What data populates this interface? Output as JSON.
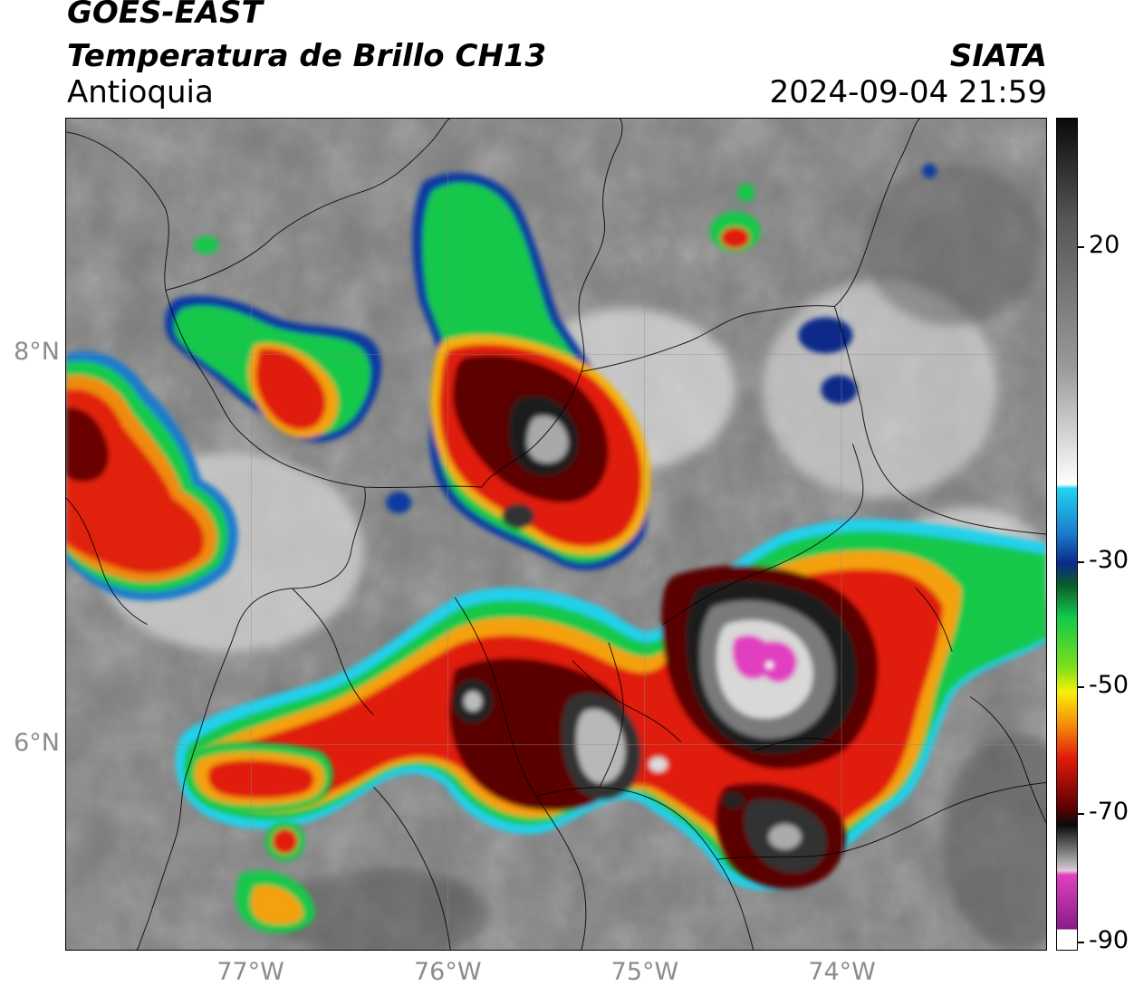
{
  "header": {
    "satellite": "GOES-EAST",
    "product": "Temperatura de Brillo CH13",
    "region": "Antioquia",
    "organization": "SIATA",
    "timestamp": "2024-09-04 21:59"
  },
  "map": {
    "lat_ticks": [
      {
        "label": "8°N",
        "lat": 8
      },
      {
        "label": "6°N",
        "lat": 6
      }
    ],
    "lon_ticks": [
      {
        "label": "77°W",
        "lon": -77
      },
      {
        "label": "76°W",
        "lon": -76
      },
      {
        "label": "75°W",
        "lon": -75
      },
      {
        "label": "74°W",
        "lon": -74
      }
    ],
    "extent": {
      "lon_min": -77.94,
      "lon_max": -72.96,
      "lat_min": 4.95,
      "lat_max": 9.21
    },
    "grid": true
  },
  "colorbar": {
    "ticks": [
      {
        "label": "20",
        "value": 20
      },
      {
        "label": "-30",
        "value": -30
      },
      {
        "label": "-50",
        "value": -50
      },
      {
        "label": "-70",
        "value": -70
      },
      {
        "label": "-90",
        "value": -90
      }
    ],
    "range": [
      -92,
      40
    ],
    "colors": {
      "warm_gray": "#4a4a4a",
      "white": "#ffffff",
      "cyan": "#22d3f0",
      "blue": "#0a2a8a",
      "green": "#12c94a",
      "yellow": "#f7f00a",
      "orange": "#f58a0a",
      "red": "#e01a0a",
      "dark_red": "#5a0000",
      "black": "#0a0a0a",
      "magenta": "#e040c0",
      "purple": "#8a1a8a"
    }
  }
}
